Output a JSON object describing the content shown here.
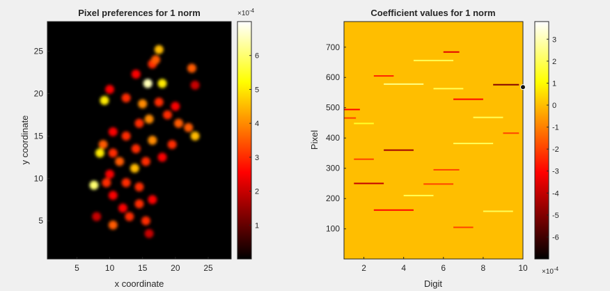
{
  "chart_data": [
    {
      "type": "heatmap",
      "title": "Pixel preferences for 1 norm",
      "xlabel": "x coordinate",
      "ylabel": "y coordinate",
      "xlim": [
        1,
        28
      ],
      "ylim": [
        1,
        28
      ],
      "xticks": [
        5,
        10,
        15,
        20,
        25
      ],
      "yticks": [
        5,
        10,
        15,
        20,
        25
      ],
      "colormap": "hot",
      "colorbar": {
        "range": [
          0,
          0.0007
        ],
        "ticks": [
          1,
          2,
          3,
          4,
          5,
          6
        ],
        "exponent_label": "×10",
        "exponent": "-4"
      },
      "blobs": [
        {
          "x": 17.5,
          "y": 25.2,
          "v": 0.00045
        },
        {
          "x": 17.0,
          "y": 24.0,
          "v": 0.00035
        },
        {
          "x": 16.5,
          "y": 23.5,
          "v": 0.0003
        },
        {
          "x": 22.5,
          "y": 23.0,
          "v": 0.00035
        },
        {
          "x": 14.0,
          "y": 22.3,
          "v": 0.00025
        },
        {
          "x": 15.8,
          "y": 21.2,
          "v": 0.00065
        },
        {
          "x": 18.0,
          "y": 21.2,
          "v": 0.0005
        },
        {
          "x": 23.0,
          "y": 21.0,
          "v": 0.0002
        },
        {
          "x": 10.0,
          "y": 20.5,
          "v": 0.00025
        },
        {
          "x": 9.2,
          "y": 19.2,
          "v": 0.0005
        },
        {
          "x": 12.5,
          "y": 19.5,
          "v": 0.0003
        },
        {
          "x": 15.0,
          "y": 18.8,
          "v": 0.0004
        },
        {
          "x": 17.5,
          "y": 19.0,
          "v": 0.0003
        },
        {
          "x": 20.0,
          "y": 18.5,
          "v": 0.00025
        },
        {
          "x": 16.0,
          "y": 17.0,
          "v": 0.0004
        },
        {
          "x": 14.5,
          "y": 16.5,
          "v": 0.0003
        },
        {
          "x": 18.8,
          "y": 17.5,
          "v": 0.0003
        },
        {
          "x": 20.5,
          "y": 16.5,
          "v": 0.00035
        },
        {
          "x": 22.0,
          "y": 16.0,
          "v": 0.00035
        },
        {
          "x": 23.0,
          "y": 15.0,
          "v": 0.00045
        },
        {
          "x": 10.5,
          "y": 15.5,
          "v": 0.00025
        },
        {
          "x": 12.5,
          "y": 15.0,
          "v": 0.0003
        },
        {
          "x": 16.5,
          "y": 14.5,
          "v": 0.0004
        },
        {
          "x": 9.0,
          "y": 14.0,
          "v": 0.00035
        },
        {
          "x": 8.5,
          "y": 13.0,
          "v": 0.0005
        },
        {
          "x": 10.5,
          "y": 13.0,
          "v": 0.0003
        },
        {
          "x": 14.0,
          "y": 13.5,
          "v": 0.0003
        },
        {
          "x": 19.5,
          "y": 14.0,
          "v": 0.0003
        },
        {
          "x": 11.5,
          "y": 12.0,
          "v": 0.00035
        },
        {
          "x": 15.5,
          "y": 12.0,
          "v": 0.0003
        },
        {
          "x": 18.0,
          "y": 12.5,
          "v": 0.00025
        },
        {
          "x": 13.8,
          "y": 11.2,
          "v": 0.00045
        },
        {
          "x": 10.0,
          "y": 10.5,
          "v": 0.00025
        },
        {
          "x": 12.5,
          "y": 9.5,
          "v": 0.0003
        },
        {
          "x": 7.6,
          "y": 9.2,
          "v": 0.0006
        },
        {
          "x": 9.5,
          "y": 9.5,
          "v": 0.0003
        },
        {
          "x": 14.5,
          "y": 9.0,
          "v": 0.0003
        },
        {
          "x": 10.5,
          "y": 8.0,
          "v": 0.00025
        },
        {
          "x": 16.5,
          "y": 7.5,
          "v": 0.00025
        },
        {
          "x": 14.5,
          "y": 7.0,
          "v": 0.0003
        },
        {
          "x": 12.0,
          "y": 6.5,
          "v": 0.00025
        },
        {
          "x": 8.0,
          "y": 5.5,
          "v": 0.0002
        },
        {
          "x": 13.0,
          "y": 5.5,
          "v": 0.0003
        },
        {
          "x": 15.5,
          "y": 5.0,
          "v": 0.0003
        },
        {
          "x": 10.5,
          "y": 4.5,
          "v": 0.00035
        },
        {
          "x": 16.0,
          "y": 3.5,
          "v": 0.0002
        }
      ]
    },
    {
      "type": "heatmap",
      "title": "Coefficient values for 1 norm",
      "xlabel": "Digit",
      "ylabel": "Pixel",
      "xlim": [
        1,
        10
      ],
      "ylim": [
        1,
        784
      ],
      "xticks": [
        2,
        4,
        6,
        8,
        10
      ],
      "yticks": [
        100,
        200,
        300,
        400,
        500,
        600,
        700
      ],
      "colormap": "hot",
      "background_value": 0,
      "colorbar": {
        "range": [
          -0.0007,
          0.00038
        ],
        "ticks": [
          3,
          2,
          1,
          0,
          -1,
          -2,
          -3,
          -4,
          -5,
          -6
        ],
        "exponent_label": "×10",
        "exponent": "-4"
      },
      "streaks": [
        {
          "d0": 6.0,
          "d1": 6.8,
          "pixel": 684,
          "v": -0.00035
        },
        {
          "d0": 4.5,
          "d1": 6.5,
          "pixel": 656,
          "v": 0.0002
        },
        {
          "d0": 2.5,
          "d1": 3.5,
          "pixel": 605,
          "v": -0.00025
        },
        {
          "d0": 8.5,
          "d1": 9.8,
          "pixel": 576,
          "v": -0.0005
        },
        {
          "d0": 3.0,
          "d1": 5.0,
          "pixel": 578,
          "v": 0.00025
        },
        {
          "d0": 5.5,
          "d1": 7.0,
          "pixel": 563,
          "v": 0.0002
        },
        {
          "d0": 6.5,
          "d1": 8.0,
          "pixel": 528,
          "v": -0.0003
        },
        {
          "d0": 1.0,
          "d1": 1.8,
          "pixel": 494,
          "v": -0.0003
        },
        {
          "d0": 1.0,
          "d1": 1.6,
          "pixel": 466,
          "v": -0.0002
        },
        {
          "d0": 7.5,
          "d1": 9.0,
          "pixel": 468,
          "v": 0.0002
        },
        {
          "d0": 1.5,
          "d1": 2.5,
          "pixel": 448,
          "v": 0.00015
        },
        {
          "d0": 9.0,
          "d1": 9.8,
          "pixel": 416,
          "v": -0.0002
        },
        {
          "d0": 6.5,
          "d1": 8.5,
          "pixel": 382,
          "v": 0.0002
        },
        {
          "d0": 3.0,
          "d1": 4.5,
          "pixel": 360,
          "v": -0.00045
        },
        {
          "d0": 1.5,
          "d1": 2.5,
          "pixel": 330,
          "v": -0.0002
        },
        {
          "d0": 5.5,
          "d1": 6.8,
          "pixel": 295,
          "v": -0.0002
        },
        {
          "d0": 1.5,
          "d1": 3.0,
          "pixel": 250,
          "v": -0.0004
        },
        {
          "d0": 5.0,
          "d1": 6.5,
          "pixel": 248,
          "v": -0.0002
        },
        {
          "d0": 4.0,
          "d1": 5.5,
          "pixel": 210,
          "v": 0.0002
        },
        {
          "d0": 2.5,
          "d1": 4.5,
          "pixel": 162,
          "v": -0.0003
        },
        {
          "d0": 8.0,
          "d1": 9.5,
          "pixel": 158,
          "v": 0.0002
        },
        {
          "d0": 6.5,
          "d1": 7.5,
          "pixel": 105,
          "v": -0.0002
        }
      ],
      "marker": {
        "x": 10,
        "y": 568
      }
    }
  ]
}
